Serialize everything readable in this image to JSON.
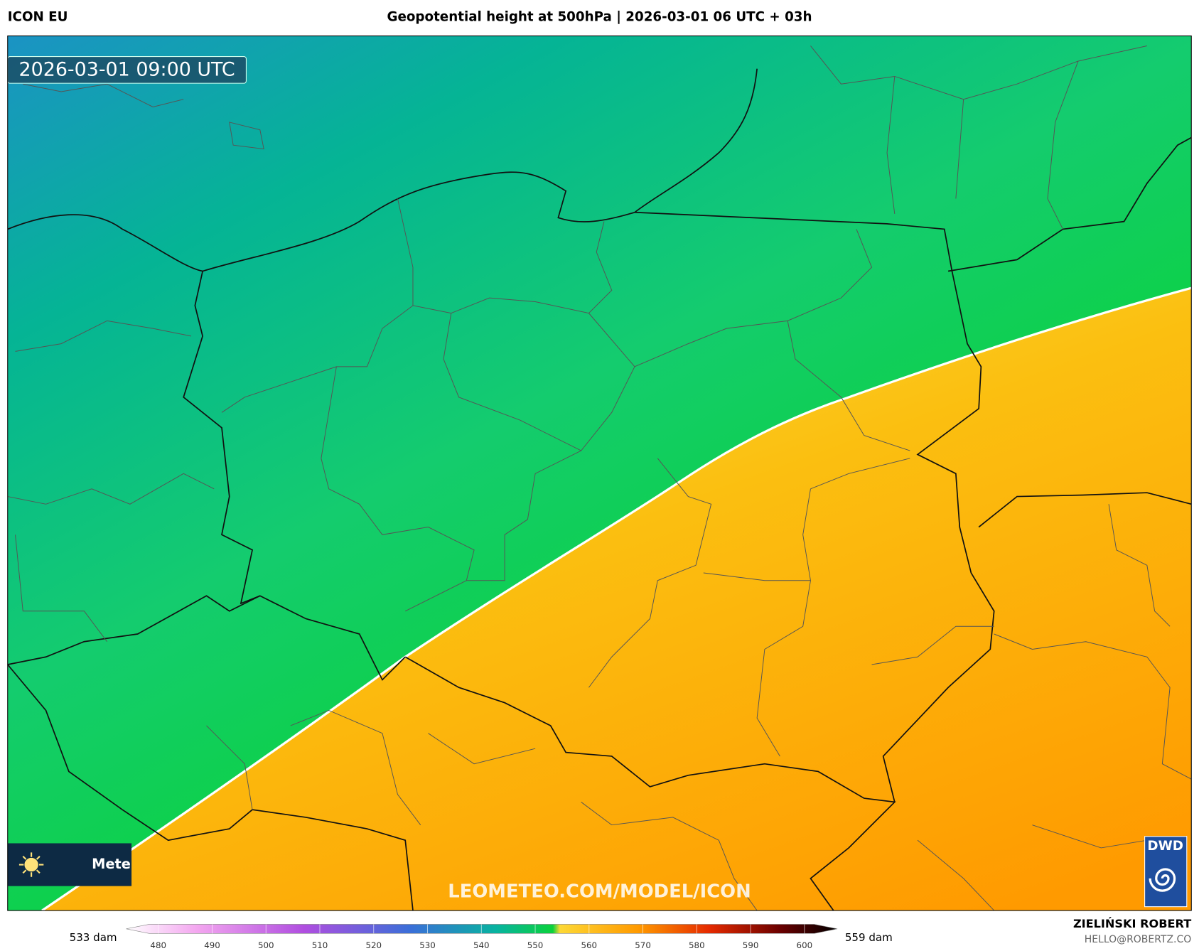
{
  "header": {
    "model": "ICON EU",
    "title": "Geopotential height at 500hPa | 2026-03-01 06 UTC + 03h"
  },
  "map": {
    "valid_time": "2026-03-01 09:00 UTC",
    "watermark": "LEOMETEO.COM/MODEL/ICON",
    "badge": "Mete",
    "logo": "DWD"
  },
  "colorbar": {
    "min_label": "533 dam",
    "max_label": "559 dam",
    "ticks": [
      480,
      490,
      500,
      510,
      520,
      530,
      540,
      550,
      560,
      570,
      580,
      590,
      600
    ]
  },
  "footer": {
    "author": "ZIELIŃSKI ROBERT",
    "contact": "HELLO@ROBERTZ.CO"
  }
}
